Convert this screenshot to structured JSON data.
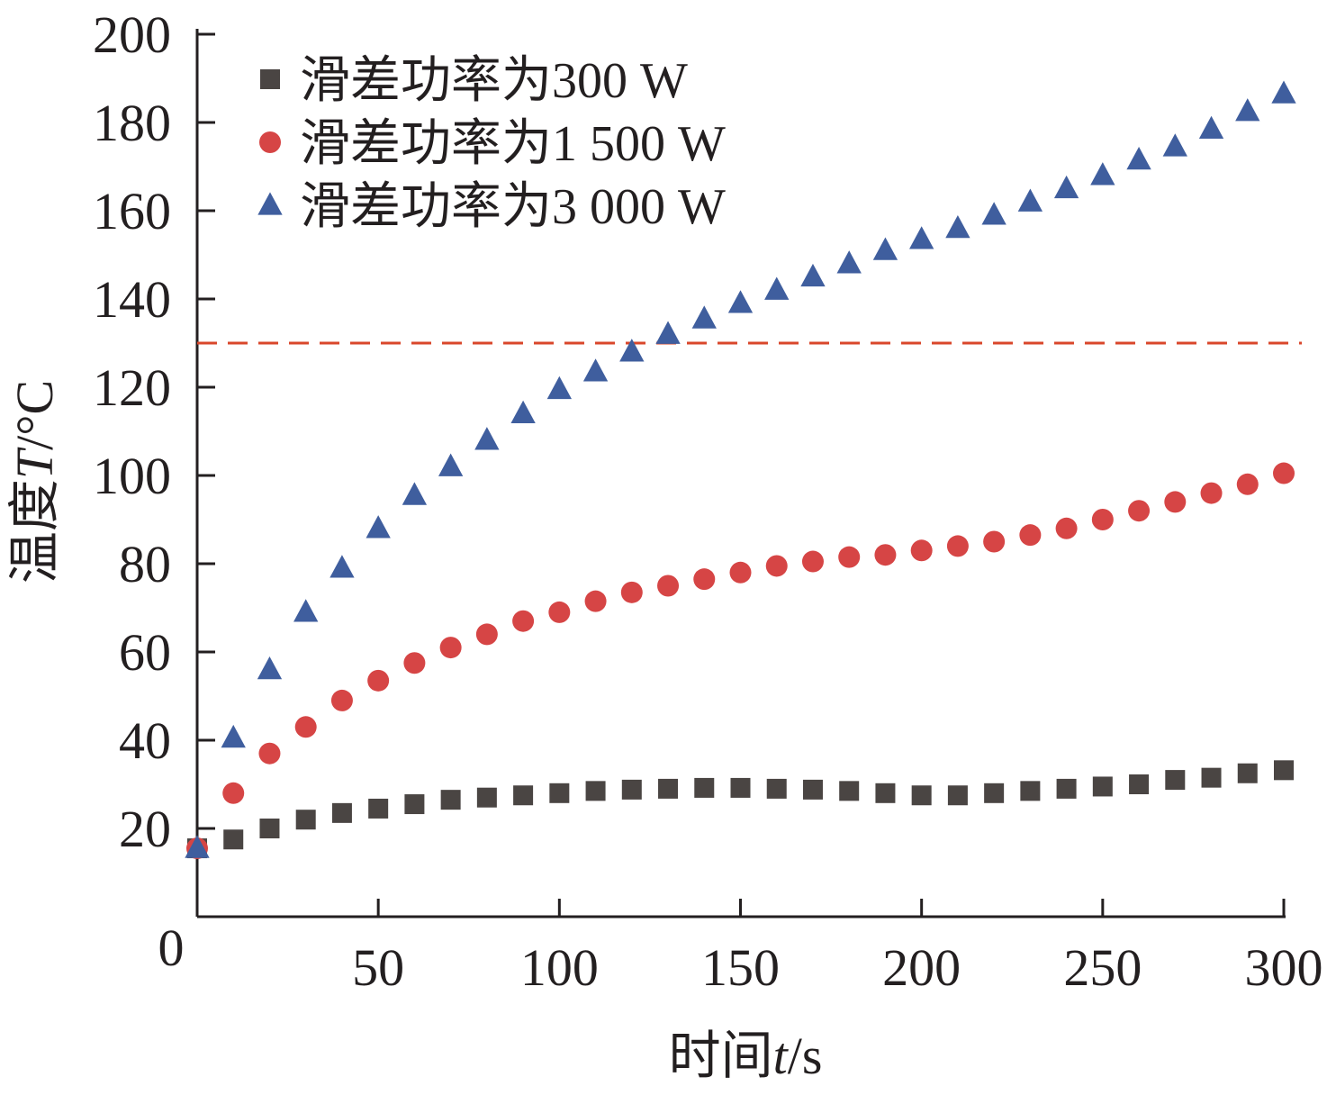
{
  "chart_data": {
    "type": "scatter",
    "title": "",
    "xlabel": {
      "prefix": "时间",
      "var": "t",
      "suffix": "/s"
    },
    "ylabel": {
      "prefix": "温度",
      "var": "T",
      "suffix": "/°C"
    },
    "xlim": [
      0,
      300
    ],
    "ylim": [
      0,
      200
    ],
    "xticks": [
      0,
      50,
      100,
      150,
      200,
      250,
      300
    ],
    "yticks": [
      20,
      40,
      60,
      80,
      100,
      120,
      140,
      160,
      180,
      200
    ],
    "x_origin_label": "0",
    "grid": false,
    "legend_position": "top-left",
    "reference_line": {
      "y": 130,
      "style": "dashed",
      "color": "#d9472b"
    },
    "x": [
      0,
      10,
      20,
      30,
      40,
      50,
      60,
      70,
      80,
      90,
      100,
      110,
      120,
      130,
      140,
      150,
      160,
      170,
      180,
      190,
      200,
      210,
      220,
      230,
      240,
      250,
      260,
      270,
      280,
      290,
      300
    ],
    "series": [
      {
        "name": "滑差功率为300 W",
        "marker": "square",
        "color": "#4a4543",
        "values": [
          15.5,
          17.5,
          20,
          22,
          23.5,
          24.5,
          25.5,
          26.5,
          27,
          27.5,
          28,
          28.5,
          28.8,
          29,
          29.2,
          29.2,
          29,
          28.8,
          28.5,
          28,
          27.5,
          27.5,
          28,
          28.5,
          29,
          29.5,
          30,
          31,
          31.5,
          32.5,
          33.2
        ]
      },
      {
        "name": "滑差功率为1 500 W",
        "marker": "circle",
        "color": "#d64545",
        "values": [
          15.5,
          28,
          37,
          43,
          49,
          53.5,
          57.5,
          61,
          64,
          67,
          69,
          71.5,
          73.5,
          75,
          76.5,
          78,
          79.5,
          80.5,
          81.5,
          82,
          83,
          84,
          85,
          86.5,
          88,
          90,
          92,
          94,
          96,
          98,
          100.5
        ]
      },
      {
        "name": "滑差功率为3 000 W",
        "marker": "triangle",
        "color": "#3f5e9e",
        "values": [
          15.5,
          40.5,
          56,
          69,
          79,
          88,
          95.5,
          102,
          108,
          114,
          119.5,
          123.5,
          128,
          132,
          135.5,
          139,
          142,
          145,
          148,
          151,
          153.5,
          156,
          159,
          162,
          165,
          168,
          171.5,
          174.5,
          178.5,
          182.5,
          186.5
        ]
      }
    ]
  }
}
